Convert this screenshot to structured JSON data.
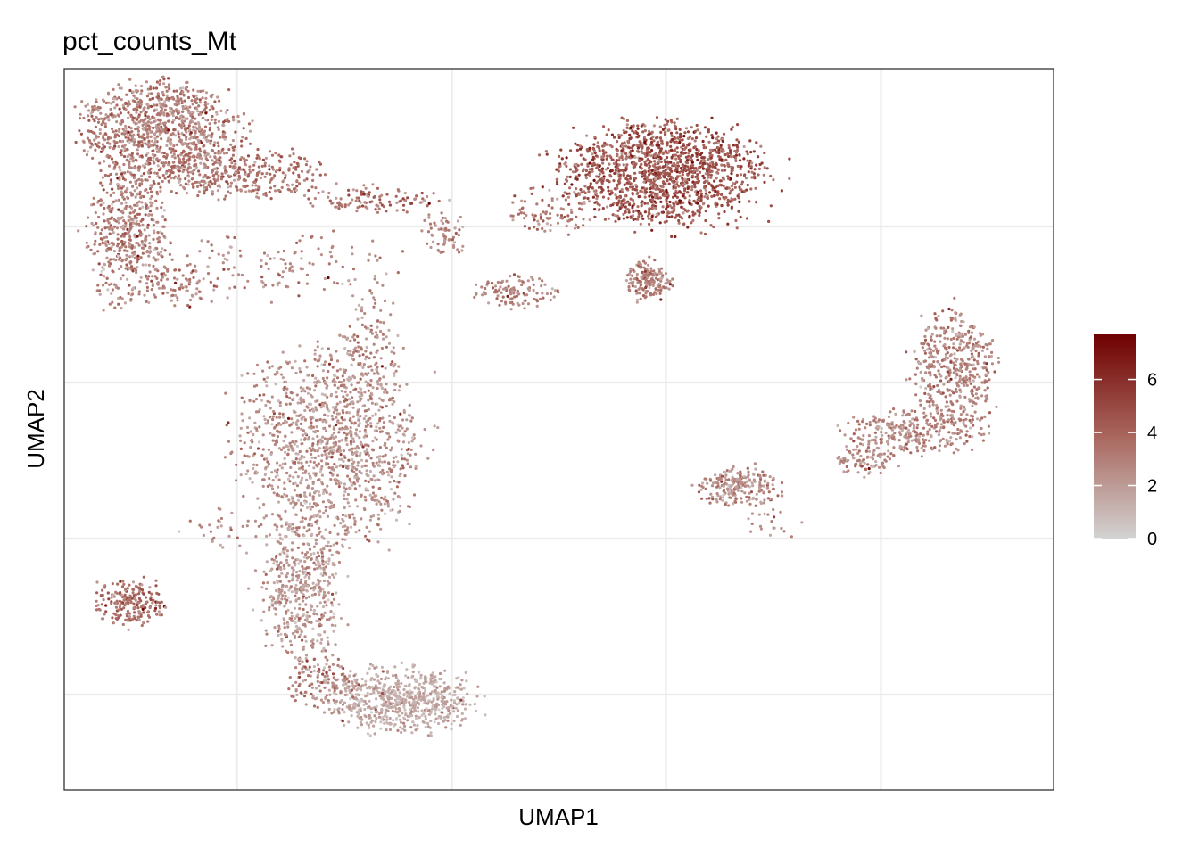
{
  "chart_data": {
    "type": "scatter",
    "title": "pct_counts_Mt",
    "xlabel": "UMAP1",
    "ylabel": "UMAP2",
    "x_ticks_labeled": false,
    "y_ticks_labeled": false,
    "grid": true,
    "legend_placement": "right",
    "colorbar": {
      "min": 0,
      "max": 7.7,
      "ticks": [
        {
          "value": 0,
          "label": "0"
        },
        {
          "value": 2,
          "label": "2"
        },
        {
          "value": 4,
          "label": "4"
        },
        {
          "value": 6,
          "label": "6"
        }
      ],
      "low_color": "#d3d3d3",
      "high_color": "#6e0000"
    },
    "clusters": [
      {
        "cx": 9.5,
        "cy": 91.5,
        "rx": 8,
        "ry": 6.5,
        "n": 950,
        "mean": 3.0,
        "sd": 0.9
      },
      {
        "cx": 17,
        "cy": 85.5,
        "rx": 9,
        "ry": 3.5,
        "n": 380,
        "mean": 3.3,
        "sd": 0.9
      },
      {
        "cx": 6.5,
        "cy": 77,
        "rx": 4,
        "ry": 10,
        "n": 520,
        "mean": 2.9,
        "sd": 0.9
      },
      {
        "cx": 12,
        "cy": 70,
        "rx": 3,
        "ry": 3,
        "n": 70,
        "mean": 2.6,
        "sd": 0.8
      },
      {
        "cx": 31,
        "cy": 82,
        "rx": 7,
        "ry": 1.8,
        "n": 110,
        "mean": 3.4,
        "sd": 1.1
      },
      {
        "cx": 38.5,
        "cy": 77,
        "rx": 2.5,
        "ry": 3,
        "n": 60,
        "mean": 2.8,
        "sd": 0.8
      },
      {
        "cx": 22,
        "cy": 73,
        "rx": 12,
        "ry": 5,
        "n": 130,
        "mean": 2.8,
        "sd": 0.8
      },
      {
        "cx": 31,
        "cy": 62,
        "rx": 3,
        "ry": 8,
        "n": 120,
        "mean": 2.5,
        "sd": 0.7
      },
      {
        "cx": 27,
        "cy": 48,
        "rx": 9,
        "ry": 13,
        "n": 1250,
        "mean": 2.3,
        "sd": 0.8
      },
      {
        "cx": 24,
        "cy": 28,
        "rx": 4,
        "ry": 10,
        "n": 480,
        "mean": 2.0,
        "sd": 0.8
      },
      {
        "cx": 34,
        "cy": 12.5,
        "rx": 7,
        "ry": 4.5,
        "n": 650,
        "mean": 1.4,
        "sd": 0.6
      },
      {
        "cx": 26,
        "cy": 15,
        "rx": 3.5,
        "ry": 4,
        "n": 140,
        "mean": 2.6,
        "sd": 1.1
      },
      {
        "cx": 6.5,
        "cy": 26,
        "rx": 3.5,
        "ry": 3.2,
        "n": 200,
        "mean": 3.5,
        "sd": 1.0
      },
      {
        "cx": 16,
        "cy": 36,
        "rx": 4,
        "ry": 3,
        "n": 30,
        "mean": 2.5,
        "sd": 0.8
      },
      {
        "cx": 60.5,
        "cy": 85.5,
        "rx": 10,
        "ry": 7,
        "n": 1450,
        "mean": 4.4,
        "sd": 1.1
      },
      {
        "cx": 49,
        "cy": 80,
        "rx": 4,
        "ry": 3,
        "n": 80,
        "mean": 3.0,
        "sd": 0.9
      },
      {
        "cx": 45.5,
        "cy": 69,
        "rx": 4,
        "ry": 2.2,
        "n": 110,
        "mean": 2.8,
        "sd": 0.8
      },
      {
        "cx": 59,
        "cy": 70.5,
        "rx": 2.3,
        "ry": 2.8,
        "n": 170,
        "mean": 2.9,
        "sd": 0.8
      },
      {
        "cx": 68,
        "cy": 42,
        "rx": 4.5,
        "ry": 2.6,
        "n": 230,
        "mean": 2.6,
        "sd": 0.8
      },
      {
        "cx": 90,
        "cy": 58,
        "rx": 4,
        "ry": 8,
        "n": 460,
        "mean": 2.7,
        "sd": 0.9
      },
      {
        "cx": 86,
        "cy": 49.5,
        "rx": 7,
        "ry": 2.8,
        "n": 260,
        "mean": 2.6,
        "sd": 0.8
      },
      {
        "cx": 81,
        "cy": 46,
        "rx": 3,
        "ry": 2.5,
        "n": 100,
        "mean": 2.5,
        "sd": 0.8
      },
      {
        "cx": 72,
        "cy": 37,
        "rx": 3,
        "ry": 2,
        "n": 20,
        "mean": 2.4,
        "sd": 0.8
      }
    ]
  }
}
